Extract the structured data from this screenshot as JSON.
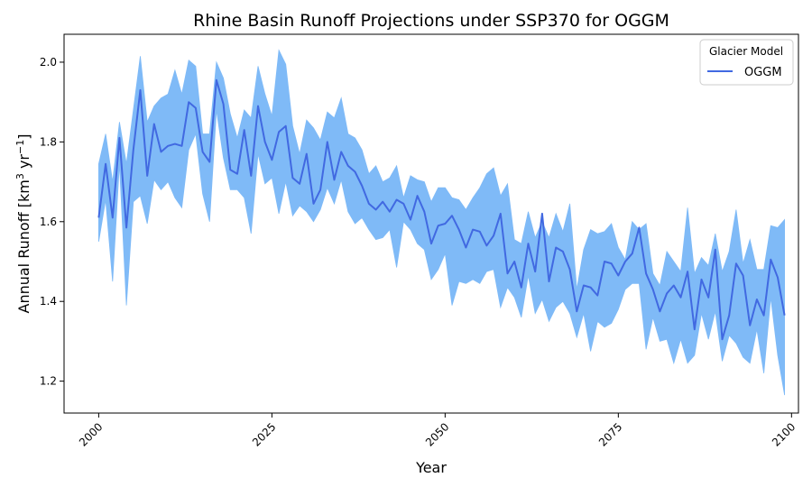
{
  "chart_data": {
    "type": "line",
    "title": "Rhine Basin Runoff Projections under SSP370 for OGGM",
    "xlabel": "Year",
    "ylabel_main": "Annual Runoff [km",
    "ylabel_sup1": "3",
    "ylabel_mid": " yr",
    "ylabel_sup2": "−1",
    "ylabel_end": "]",
    "xlim": [
      1995,
      2101
    ],
    "ylim": [
      1.12,
      2.07
    ],
    "xticks": [
      2000,
      2025,
      2050,
      2075,
      2100
    ],
    "yticks": [
      1.2,
      1.4,
      1.6,
      1.8,
      2.0
    ],
    "xtick_labels": [
      "2000",
      "2025",
      "2050",
      "2075",
      "2100"
    ],
    "ytick_labels": [
      "1.2",
      "1.4",
      "1.6",
      "1.8",
      "2.0"
    ],
    "legend": {
      "title": "Glacier Model",
      "placement": "top-right"
    },
    "series": [
      {
        "name": "OGGM",
        "color": "#4169e1",
        "band_color": "#7fbaf7",
        "x": [
          2000,
          2001,
          2002,
          2003,
          2004,
          2005,
          2006,
          2007,
          2008,
          2009,
          2010,
          2011,
          2012,
          2013,
          2014,
          2015,
          2016,
          2017,
          2018,
          2019,
          2020,
          2021,
          2022,
          2023,
          2024,
          2025,
          2026,
          2027,
          2028,
          2029,
          2030,
          2031,
          2032,
          2033,
          2034,
          2035,
          2036,
          2037,
          2038,
          2039,
          2040,
          2041,
          2042,
          2043,
          2044,
          2045,
          2046,
          2047,
          2048,
          2049,
          2050,
          2051,
          2052,
          2053,
          2054,
          2055,
          2056,
          2057,
          2058,
          2059,
          2060,
          2061,
          2062,
          2063,
          2064,
          2065,
          2066,
          2067,
          2068,
          2069,
          2070,
          2071,
          2072,
          2073,
          2074,
          2075,
          2076,
          2077,
          2078,
          2079,
          2080,
          2081,
          2082,
          2083,
          2084,
          2085,
          2086,
          2087,
          2088,
          2089,
          2090,
          2091,
          2092,
          2093,
          2094,
          2095,
          2096,
          2097,
          2098,
          2099
        ],
        "y": [
          1.61,
          1.745,
          1.61,
          1.81,
          1.585,
          1.78,
          1.93,
          1.715,
          1.845,
          1.775,
          1.79,
          1.795,
          1.79,
          1.9,
          1.885,
          1.775,
          1.75,
          1.955,
          1.895,
          1.73,
          1.72,
          1.83,
          1.715,
          1.89,
          1.8,
          1.755,
          1.825,
          1.84,
          1.71,
          1.695,
          1.77,
          1.645,
          1.68,
          1.8,
          1.705,
          1.775,
          1.74,
          1.725,
          1.69,
          1.645,
          1.63,
          1.65,
          1.625,
          1.655,
          1.645,
          1.605,
          1.665,
          1.625,
          1.545,
          1.59,
          1.595,
          1.615,
          1.58,
          1.535,
          1.58,
          1.575,
          1.54,
          1.565,
          1.62,
          1.47,
          1.5,
          1.435,
          1.545,
          1.475,
          1.62,
          1.45,
          1.535,
          1.525,
          1.48,
          1.375,
          1.44,
          1.435,
          1.415,
          1.5,
          1.495,
          1.465,
          1.5,
          1.52,
          1.585,
          1.47,
          1.43,
          1.375,
          1.42,
          1.44,
          1.41,
          1.475,
          1.33,
          1.455,
          1.41,
          1.53,
          1.305,
          1.365,
          1.495,
          1.465,
          1.34,
          1.405,
          1.365,
          1.505,
          1.46,
          1.365
        ],
        "upper": [
          1.745,
          1.82,
          1.7,
          1.85,
          1.745,
          1.88,
          2.015,
          1.85,
          1.89,
          1.91,
          1.92,
          1.98,
          1.92,
          2.005,
          1.99,
          1.82,
          1.82,
          2.0,
          1.96,
          1.87,
          1.81,
          1.88,
          1.86,
          1.99,
          1.92,
          1.865,
          2.03,
          1.995,
          1.84,
          1.77,
          1.855,
          1.835,
          1.805,
          1.875,
          1.86,
          1.91,
          1.82,
          1.81,
          1.78,
          1.72,
          1.74,
          1.7,
          1.71,
          1.74,
          1.66,
          1.715,
          1.705,
          1.7,
          1.65,
          1.685,
          1.685,
          1.66,
          1.655,
          1.63,
          1.66,
          1.685,
          1.72,
          1.735,
          1.665,
          1.695,
          1.555,
          1.545,
          1.625,
          1.56,
          1.6,
          1.56,
          1.62,
          1.575,
          1.645,
          1.43,
          1.53,
          1.58,
          1.57,
          1.575,
          1.595,
          1.535,
          1.505,
          1.6,
          1.58,
          1.595,
          1.47,
          1.44,
          1.525,
          1.5,
          1.475,
          1.635,
          1.47,
          1.51,
          1.49,
          1.57,
          1.475,
          1.525,
          1.63,
          1.495,
          1.555,
          1.48,
          1.48,
          1.59,
          1.585,
          1.605
        ],
        "lower": [
          1.55,
          1.655,
          1.45,
          1.745,
          1.39,
          1.65,
          1.665,
          1.595,
          1.705,
          1.68,
          1.7,
          1.66,
          1.635,
          1.78,
          1.82,
          1.67,
          1.6,
          1.88,
          1.76,
          1.68,
          1.68,
          1.66,
          1.57,
          1.77,
          1.695,
          1.71,
          1.62,
          1.7,
          1.615,
          1.64,
          1.625,
          1.6,
          1.63,
          1.685,
          1.645,
          1.705,
          1.625,
          1.595,
          1.61,
          1.58,
          1.555,
          1.56,
          1.58,
          1.485,
          1.6,
          1.58,
          1.545,
          1.53,
          1.455,
          1.48,
          1.52,
          1.39,
          1.45,
          1.445,
          1.455,
          1.445,
          1.475,
          1.48,
          1.385,
          1.435,
          1.41,
          1.36,
          1.465,
          1.37,
          1.405,
          1.35,
          1.385,
          1.4,
          1.37,
          1.31,
          1.37,
          1.275,
          1.35,
          1.335,
          1.345,
          1.38,
          1.43,
          1.445,
          1.445,
          1.28,
          1.36,
          1.3,
          1.305,
          1.245,
          1.305,
          1.245,
          1.265,
          1.37,
          1.305,
          1.375,
          1.25,
          1.315,
          1.295,
          1.26,
          1.245,
          1.33,
          1.22,
          1.41,
          1.265,
          1.165
        ]
      }
    ]
  }
}
